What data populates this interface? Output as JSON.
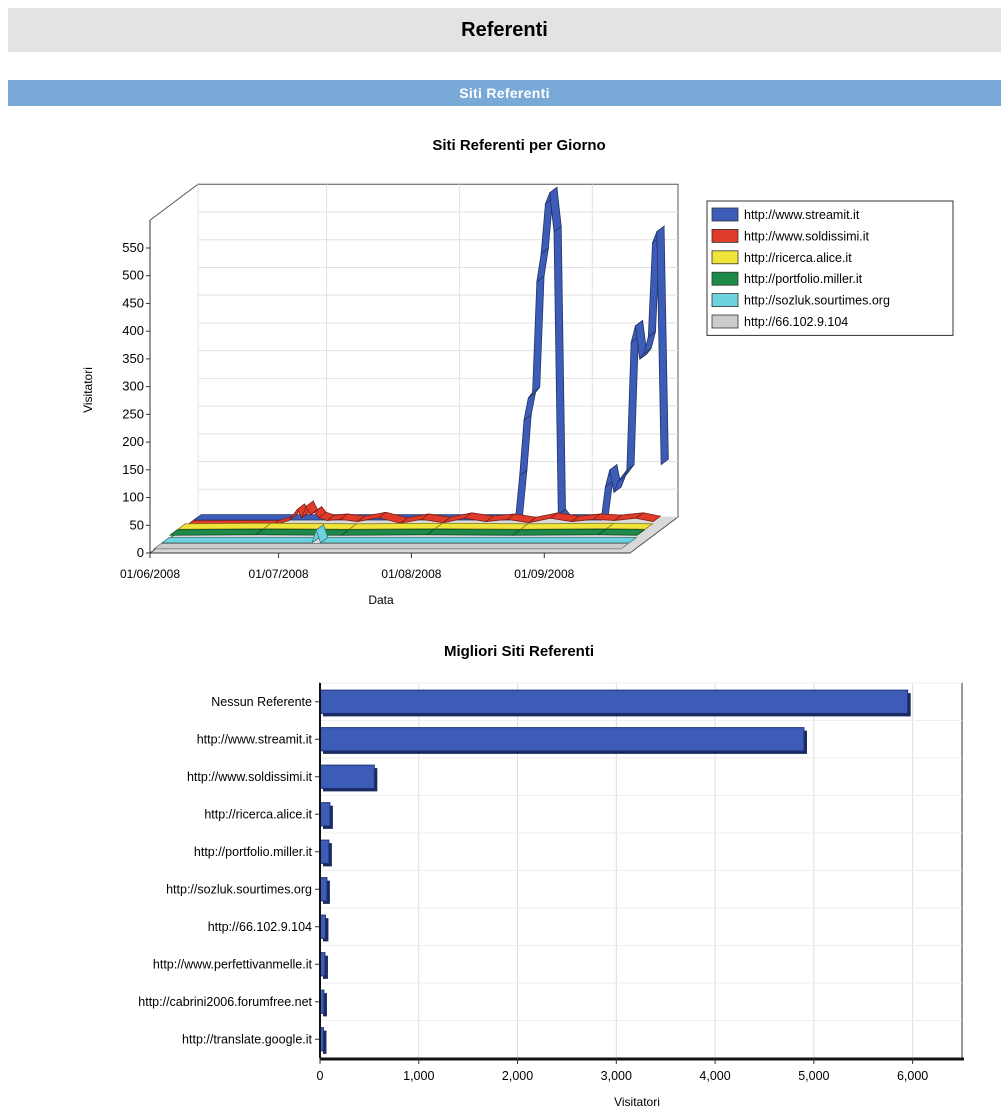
{
  "page": {
    "title": "Referenti",
    "section_title": "Siti Referenti"
  },
  "colors": {
    "header_bg": "#e3e3e3",
    "section_bg": "#79a9d6",
    "bar": "#3d5cb8"
  },
  "chart_data": [
    {
      "type": "area",
      "title": "Siti Referenti per Giorno",
      "xlabel": "Data",
      "ylabel": "Visitatori",
      "ylim": [
        0,
        600
      ],
      "y_ticks": [
        0,
        50,
        100,
        150,
        200,
        250,
        300,
        350,
        400,
        450,
        500,
        550
      ],
      "x_tick_labels": [
        "01/06/2008",
        "01/07/2008",
        "01/08/2008",
        "01/09/2008"
      ],
      "x_start": "01/06/2008",
      "x_end": "25/09/2008",
      "x_ticks_days": [
        0,
        30,
        61,
        92
      ],
      "three_d": true,
      "grid": true,
      "legend_position": "right",
      "series": [
        {
          "name": "http://www.streamit.it",
          "color": "#3d5cb8",
          "points": [
            [
              0,
              0
            ],
            [
              40,
              0
            ],
            [
              65,
              0
            ],
            [
              75,
              0
            ],
            [
              76,
              80
            ],
            [
              77,
              180
            ],
            [
              78,
              220
            ],
            [
              79,
              230
            ],
            [
              80,
              430
            ],
            [
              81,
              480
            ],
            [
              82,
              570
            ],
            [
              83,
              590
            ],
            [
              84,
              520
            ],
            [
              85,
              10
            ],
            [
              86,
              0
            ],
            [
              95,
              0
            ],
            [
              96,
              60
            ],
            [
              97,
              90
            ],
            [
              98,
              50
            ],
            [
              99,
              70
            ],
            [
              100,
              80
            ],
            [
              101,
              90
            ],
            [
              102,
              320
            ],
            [
              103,
              350
            ],
            [
              104,
              290
            ],
            [
              105,
              300
            ],
            [
              106,
              330
            ],
            [
              107,
              500
            ],
            [
              108,
              520
            ],
            [
              109,
              100
            ]
          ]
        },
        {
          "name": "http://www.soldissimi.it",
          "color": "#e03a2a",
          "points": [
            [
              0,
              0
            ],
            [
              20,
              0
            ],
            [
              24,
              10
            ],
            [
              26,
              30
            ],
            [
              27,
              15
            ],
            [
              28,
              35
            ],
            [
              29,
              20
            ],
            [
              30,
              25
            ],
            [
              31,
              15
            ],
            [
              33,
              10
            ],
            [
              36,
              12
            ],
            [
              40,
              8
            ],
            [
              45,
              15
            ],
            [
              50,
              5
            ],
            [
              55,
              12
            ],
            [
              60,
              6
            ],
            [
              65,
              14
            ],
            [
              70,
              8
            ],
            [
              75,
              12
            ],
            [
              80,
              6
            ],
            [
              85,
              14
            ],
            [
              90,
              8
            ],
            [
              95,
              12
            ],
            [
              100,
              10
            ],
            [
              105,
              14
            ],
            [
              109,
              8
            ]
          ]
        },
        {
          "name": "http://ricerca.alice.it",
          "color": "#f0e43a",
          "points": [
            [
              0,
              5
            ],
            [
              20,
              6
            ],
            [
              40,
              5
            ],
            [
              60,
              6
            ],
            [
              80,
              5
            ],
            [
              100,
              6
            ],
            [
              109,
              5
            ]
          ]
        },
        {
          "name": "http://portfolio.miller.it",
          "color": "#1e8a4a",
          "points": [
            [
              0,
              5
            ],
            [
              20,
              6
            ],
            [
              40,
              5
            ],
            [
              60,
              6
            ],
            [
              80,
              5
            ],
            [
              100,
              6
            ],
            [
              109,
              5
            ]
          ]
        },
        {
          "name": "http://sozluk.sourtimes.org",
          "color": "#6dd3de",
          "points": [
            [
              0,
              2
            ],
            [
              35,
              2
            ],
            [
              36,
              25
            ],
            [
              37,
              2
            ],
            [
              109,
              2
            ]
          ]
        },
        {
          "name": "http://66.102.9.104",
          "color": "#cccccc",
          "points": [
            [
              0,
              2
            ],
            [
              109,
              2
            ]
          ]
        }
      ]
    },
    {
      "type": "bar",
      "orientation": "horizontal",
      "title": "Migliori Siti Referenti",
      "xlabel": "Visitatori",
      "ylabel": "",
      "xlim": [
        0,
        6500
      ],
      "x_ticks": [
        0,
        1000,
        2000,
        3000,
        4000,
        5000,
        6000
      ],
      "x_tick_labels": [
        "0",
        "1,000",
        "2,000",
        "3,000",
        "4,000",
        "5,000",
        "6,000"
      ],
      "categories": [
        "Nessun Referente",
        "http://www.streamit.it",
        "http://www.soldissimi.it",
        "http://ricerca.alice.it",
        "http://portfolio.miller.it",
        "http://sozluk.sourtimes.org",
        "http://66.102.9.104",
        "http://www.perfettivanmelle.it",
        "http://cabrini2006.forumfree.net",
        "http://translate.google.it"
      ],
      "values": [
        5950,
        4900,
        550,
        100,
        90,
        70,
        55,
        50,
        40,
        35
      ],
      "grid": true
    }
  ]
}
